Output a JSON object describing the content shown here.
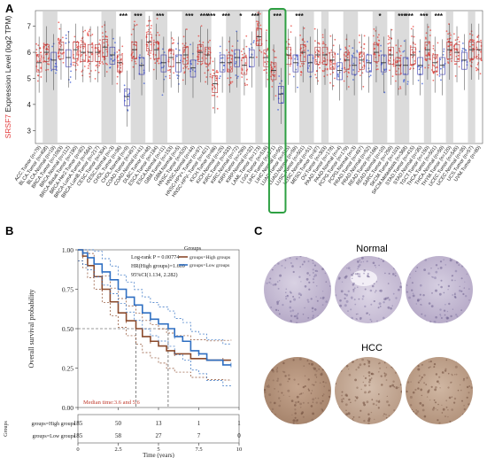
{
  "panels": {
    "a": "A",
    "b": "B",
    "c": "C"
  },
  "chart_data": [
    {
      "type": "box",
      "ylabel_gene": "SRSF7",
      "ylabel_rest": " Expression Level (log2 TPM)",
      "yticks": [
        3,
        4,
        5,
        6,
        7
      ],
      "ylim": [
        2.5,
        7.6
      ],
      "colors": {
        "tumor": "#e8433c",
        "normal": "#3b5bd6",
        "shade": "#cfcfcf",
        "highlight": "#2ea043",
        "gene": "#e23b3b"
      },
      "categories": [
        {
          "label": "ACC.Tumor (n=79)",
          "kind": "tumor",
          "median": 5.6,
          "sig": ""
        },
        {
          "label": "BLCA.Tumor (n=408)",
          "kind": "tumor",
          "median": 6.0,
          "sig": ""
        },
        {
          "label": "BLCA.Normal (n=19)",
          "kind": "normal",
          "median": 5.7,
          "sig": ""
        },
        {
          "label": "BRCA.Tumor (n=1093)",
          "kind": "tumor",
          "median": 6.1,
          "sig": ""
        },
        {
          "label": "BRCA.Normal (n=112)",
          "kind": "normal",
          "median": 5.8,
          "sig": ""
        },
        {
          "label": "BRCA-Basal.Tumor (n=190)",
          "kind": "tumor",
          "median": 6.1,
          "sig": ""
        },
        {
          "label": "BRCA-Her2.Tumor (n=82)",
          "kind": "tumor",
          "median": 6.0,
          "sig": ""
        },
        {
          "label": "BRCA-LumA.Tumor (n=564)",
          "kind": "tumor",
          "median": 6.0,
          "sig": ""
        },
        {
          "label": "BRCA-LumB.Tumor (n=217)",
          "kind": "tumor",
          "median": 6.0,
          "sig": ""
        },
        {
          "label": "CESC.Tumor (n=304)",
          "kind": "tumor",
          "median": 6.2,
          "sig": ""
        },
        {
          "label": "CESC.Normal (n=3)",
          "kind": "normal",
          "median": 5.9,
          "sig": ""
        },
        {
          "label": "CHOL.Tumor (n=36)",
          "kind": "tumor",
          "median": 5.6,
          "sig": "***"
        },
        {
          "label": "CHOL.Normal (n=9)",
          "kind": "normal",
          "median": 4.3,
          "sig": ""
        },
        {
          "label": "COAD.Tumor (n=457)",
          "kind": "tumor",
          "median": 6.1,
          "sig": "***"
        },
        {
          "label": "COAD.Normal (n=41)",
          "kind": "normal",
          "median": 5.5,
          "sig": ""
        },
        {
          "label": "DLBC.Tumor (n=48)",
          "kind": "tumor",
          "median": 6.4,
          "sig": ""
        },
        {
          "label": "ESCA.Tumor (n=184)",
          "kind": "tumor",
          "median": 6.1,
          "sig": "***"
        },
        {
          "label": "ESCA.Normal (n=11)",
          "kind": "normal",
          "median": 5.6,
          "sig": ""
        },
        {
          "label": "GBM.Tumor (n=153)",
          "kind": "tumor",
          "median": 5.8,
          "sig": ""
        },
        {
          "label": "GBM.Normal (n=5)",
          "kind": "normal",
          "median": 5.6,
          "sig": ""
        },
        {
          "label": "HNSC.Tumor (n=520)",
          "kind": "tumor",
          "median": 5.9,
          "sig": "***"
        },
        {
          "label": "HNSC.Normal (n=44)",
          "kind": "normal",
          "median": 5.4,
          "sig": ""
        },
        {
          "label": "HNSC-HPV+.Tumor (n=97)",
          "kind": "tumor",
          "median": 6.0,
          "sig": "***"
        },
        {
          "label": "HNSC-HPV-.Tumor (n=421)",
          "kind": "tumor",
          "median": 5.9,
          "sig": "***"
        },
        {
          "label": "KICH.Tumor (n=66)",
          "kind": "tumor",
          "median": 4.8,
          "sig": ""
        },
        {
          "label": "KICH.Normal (n=25)",
          "kind": "normal",
          "median": 5.6,
          "sig": "***"
        },
        {
          "label": "KIRC.Tumor (n=533)",
          "kind": "tumor",
          "median": 5.6,
          "sig": ""
        },
        {
          "label": "KIRC.Normal (n=72)",
          "kind": "normal",
          "median": 5.8,
          "sig": "*"
        },
        {
          "label": "KIRP.Tumor (n=290)",
          "kind": "tumor",
          "median": 5.5,
          "sig": ""
        },
        {
          "label": "KIRP.Normal (n=32)",
          "kind": "normal",
          "median": 5.8,
          "sig": "***"
        },
        {
          "label": "LAML.Tumor (n=173)",
          "kind": "tumor",
          "median": 6.6,
          "sig": ""
        },
        {
          "label": "LGG.Tumor (n=516)",
          "kind": "tumor",
          "median": 5.8,
          "sig": ""
        },
        {
          "label": "LIHC.Tumor (n=371)",
          "kind": "tumor",
          "median": 5.3,
          "sig": "***",
          "highlight": true
        },
        {
          "label": "LIHC.Normal (n=50)",
          "kind": "normal",
          "median": 4.4,
          "sig": "",
          "highlight": true
        },
        {
          "label": "LUAD.Tumor (n=515)",
          "kind": "tumor",
          "median": 5.9,
          "sig": ""
        },
        {
          "label": "LUAD.Normal (n=59)",
          "kind": "normal",
          "median": 5.6,
          "sig": "***"
        },
        {
          "label": "LUSC.Tumor (n=501)",
          "kind": "tumor",
          "median": 6.0,
          "sig": ""
        },
        {
          "label": "LUSC.Normal (n=51)",
          "kind": "normal",
          "median": 5.6,
          "sig": ""
        },
        {
          "label": "MESO.Tumor (n=87)",
          "kind": "tumor",
          "median": 5.9,
          "sig": ""
        },
        {
          "label": "OV.Tumor (n=303)",
          "kind": "tumor",
          "median": 5.9,
          "sig": ""
        },
        {
          "label": "PAAD.Tumor (n=178)",
          "kind": "tumor",
          "median": 5.7,
          "sig": ""
        },
        {
          "label": "PAAD.Normal (n=4)",
          "kind": "normal",
          "median": 5.3,
          "sig": ""
        },
        {
          "label": "PCPG.Tumor (n=179)",
          "kind": "tumor",
          "median": 5.7,
          "sig": ""
        },
        {
          "label": "PCPG.Normal (n=3)",
          "kind": "normal",
          "median": 5.5,
          "sig": ""
        },
        {
          "label": "PRAD.Tumor (n=497)",
          "kind": "tumor",
          "median": 5.7,
          "sig": ""
        },
        {
          "label": "PRAD.Normal (n=52)",
          "kind": "normal",
          "median": 5.6,
          "sig": ""
        },
        {
          "label": "READ.Tumor (n=166)",
          "kind": "tumor",
          "median": 6.0,
          "sig": "*"
        },
        {
          "label": "READ.Normal (n=10)",
          "kind": "normal",
          "median": 5.6,
          "sig": ""
        },
        {
          "label": "SARC.Tumor (n=259)",
          "kind": "tumor",
          "median": 5.9,
          "sig": ""
        },
        {
          "label": "SKCM.Tumor (n=103)",
          "kind": "tumor",
          "median": 5.5,
          "sig": "***"
        },
        {
          "label": "SKCM.Metastasis (n=368)",
          "kind": "normal",
          "median": 5.5,
          "sig": "***"
        },
        {
          "label": "STAD.Tumor (n=415)",
          "kind": "tumor",
          "median": 5.9,
          "sig": ""
        },
        {
          "label": "STAD.Normal (n=35)",
          "kind": "normal",
          "median": 5.5,
          "sig": "***"
        },
        {
          "label": "TGCT.Tumor (n=150)",
          "kind": "tumor",
          "median": 6.1,
          "sig": ""
        },
        {
          "label": "THCA.Tumor (n=501)",
          "kind": "tumor",
          "median": 5.6,
          "sig": "***"
        },
        {
          "label": "THCA.Normal (n=59)",
          "kind": "normal",
          "median": 5.5,
          "sig": ""
        },
        {
          "label": "THYM.Tumor (n=120)",
          "kind": "tumor",
          "median": 6.1,
          "sig": ""
        },
        {
          "label": "UCEC.Tumor (n=545)",
          "kind": "tumor",
          "median": 6.0,
          "sig": ""
        },
        {
          "label": "UCEC.Normal (n=35)",
          "kind": "normal",
          "median": 5.7,
          "sig": ""
        },
        {
          "label": "UCS.Tumor (n=57)",
          "kind": "tumor",
          "median": 6.1,
          "sig": ""
        },
        {
          "label": "UVM.Tumor (n=80)",
          "kind": "tumor",
          "median": 6.1,
          "sig": ""
        }
      ]
    },
    {
      "type": "line",
      "ylabel": "Overall survival probability",
      "xlabel": "Time (years)",
      "xticks": [
        0,
        2.5,
        5,
        7.5,
        10
      ],
      "yticks": [
        "0.00",
        "0.25",
        "0.50",
        "0.75",
        "1.00"
      ],
      "xlim": [
        0,
        10
      ],
      "ylim": [
        0,
        1
      ],
      "annotations": {
        "p": "Log-rank P = 0.00774",
        "hr": "HR(High groups)=1.609",
        "ci": "95%CI(1.134, 2.282)",
        "median": "Median time:3.6 and 5.6"
      },
      "legend": {
        "title": "Groups",
        "position": "top-right"
      },
      "series": [
        {
          "name": "groups=High groups",
          "color": "#8b4a2b",
          "points": [
            [
              0,
              1
            ],
            [
              0.3,
              0.96
            ],
            [
              0.6,
              0.9
            ],
            [
              1,
              0.83
            ],
            [
              1.5,
              0.75
            ],
            [
              2,
              0.67
            ],
            [
              2.5,
              0.6
            ],
            [
              3,
              0.55
            ],
            [
              3.6,
              0.5
            ],
            [
              4,
              0.45
            ],
            [
              4.5,
              0.42
            ],
            [
              5,
              0.39
            ],
            [
              5.5,
              0.36
            ],
            [
              6,
              0.34
            ],
            [
              7,
              0.31
            ],
            [
              8,
              0.3
            ],
            [
              9,
              0.3
            ],
            [
              9.5,
              0.3
            ]
          ]
        },
        {
          "name": "groups=Low groups",
          "color": "#2f6fc2",
          "points": [
            [
              0,
              1
            ],
            [
              0.3,
              0.98
            ],
            [
              0.6,
              0.95
            ],
            [
              1,
              0.91
            ],
            [
              1.5,
              0.86
            ],
            [
              2,
              0.81
            ],
            [
              2.5,
              0.75
            ],
            [
              3,
              0.7
            ],
            [
              3.5,
              0.65
            ],
            [
              4,
              0.6
            ],
            [
              4.5,
              0.56
            ],
            [
              5,
              0.53
            ],
            [
              5.6,
              0.5
            ],
            [
              6,
              0.45
            ],
            [
              6.5,
              0.42
            ],
            [
              7,
              0.36
            ],
            [
              7.5,
              0.34
            ],
            [
              8,
              0.3
            ],
            [
              9,
              0.27
            ],
            [
              9.5,
              0.27
            ]
          ]
        }
      ],
      "risk_table": {
        "title": "Groups",
        "rows": [
          {
            "label": "groups=High groups",
            "values": [
              185,
              50,
              13,
              1,
              1
            ]
          },
          {
            "label": "groups=Low groups",
            "values": [
              185,
              58,
              27,
              7,
              0
            ]
          }
        ]
      }
    }
  ],
  "ihc": {
    "normal_title": "Normal",
    "hcc_title": "HCC"
  }
}
